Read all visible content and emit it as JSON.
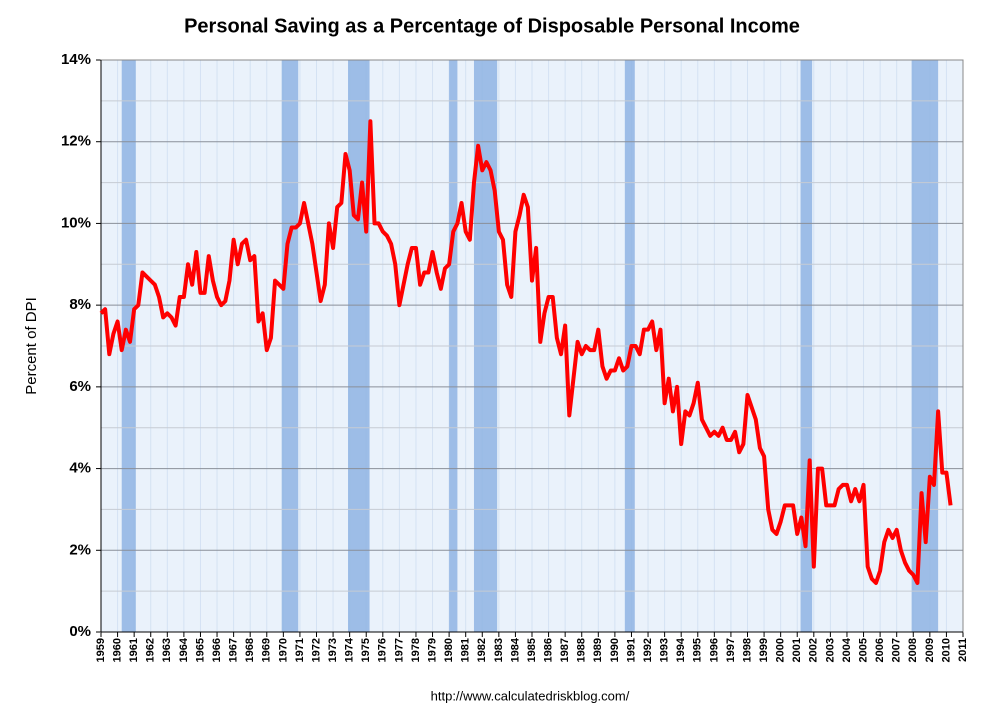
{
  "chart_data": {
    "type": "line",
    "title": "Personal Saving as a Percentage of Disposable Personal Income",
    "y_label": "Percent of DPI",
    "source": "http://www.calculatedriskblog.com/",
    "x": [
      1959,
      1959.25,
      1959.5,
      1959.75,
      1960,
      1960.25,
      1960.5,
      1960.75,
      1961,
      1961.25,
      1961.5,
      1961.75,
      1962,
      1962.25,
      1962.5,
      1962.75,
      1963,
      1963.25,
      1963.5,
      1963.75,
      1964,
      1964.25,
      1964.5,
      1964.75,
      1965,
      1965.25,
      1965.5,
      1965.75,
      1966,
      1966.25,
      1966.5,
      1966.75,
      1967,
      1967.25,
      1967.5,
      1967.75,
      1968,
      1968.25,
      1968.5,
      1968.75,
      1969,
      1969.25,
      1969.5,
      1969.75,
      1970,
      1970.25,
      1970.5,
      1970.75,
      1971,
      1971.25,
      1971.5,
      1971.75,
      1972,
      1972.25,
      1972.5,
      1972.75,
      1973,
      1973.25,
      1973.5,
      1973.75,
      1974,
      1974.25,
      1974.5,
      1974.75,
      1975,
      1975.25,
      1975.5,
      1975.75,
      1976,
      1976.25,
      1976.5,
      1976.75,
      1977,
      1977.25,
      1977.5,
      1977.75,
      1978,
      1978.25,
      1978.5,
      1978.75,
      1979,
      1979.25,
      1979.5,
      1979.75,
      1980,
      1980.25,
      1980.5,
      1980.75,
      1981,
      1981.25,
      1981.5,
      1981.75,
      1982,
      1982.25,
      1982.5,
      1982.75,
      1983,
      1983.25,
      1983.5,
      1983.75,
      1984,
      1984.25,
      1984.5,
      1984.75,
      1985,
      1985.25,
      1985.5,
      1985.75,
      1986,
      1986.25,
      1986.5,
      1986.75,
      1987,
      1987.25,
      1987.5,
      1987.75,
      1988,
      1988.25,
      1988.5,
      1988.75,
      1989,
      1989.25,
      1989.5,
      1989.75,
      1990,
      1990.25,
      1990.5,
      1990.75,
      1991,
      1991.25,
      1991.5,
      1991.75,
      1992,
      1992.25,
      1992.5,
      1992.75,
      1993,
      1993.25,
      1993.5,
      1993.75,
      1994,
      1994.25,
      1994.5,
      1994.75,
      1995,
      1995.25,
      1995.5,
      1995.75,
      1996,
      1996.25,
      1996.5,
      1996.75,
      1997,
      1997.25,
      1997.5,
      1997.75,
      1998,
      1998.25,
      1998.5,
      1998.75,
      1999,
      1999.25,
      1999.5,
      1999.75,
      2000,
      2000.25,
      2000.5,
      2000.75,
      2001,
      2001.25,
      2001.5,
      2001.75,
      2002,
      2002.25,
      2002.5,
      2002.75,
      2003,
      2003.25,
      2003.5,
      2003.75,
      2004,
      2004.25,
      2004.5,
      2004.75,
      2005,
      2005.25,
      2005.5,
      2005.75,
      2006,
      2006.25,
      2006.5,
      2006.75,
      2007,
      2007.25,
      2007.5,
      2007.75,
      2008,
      2008.25,
      2008.5,
      2008.75,
      2009,
      2009.25,
      2009.5,
      2009.75,
      2010,
      2010.25
    ],
    "series": [
      {
        "color": "#ff0000",
        "values": [
          7.8,
          7.9,
          6.8,
          7.3,
          7.6,
          6.9,
          7.4,
          7.1,
          7.9,
          8.0,
          8.8,
          8.7,
          8.6,
          8.5,
          8.2,
          7.7,
          7.8,
          7.7,
          7.5,
          8.2,
          8.2,
          9.0,
          8.5,
          9.3,
          8.3,
          8.3,
          9.2,
          8.6,
          8.2,
          8.0,
          8.1,
          8.6,
          9.6,
          9.0,
          9.5,
          9.6,
          9.1,
          9.2,
          7.6,
          7.8,
          6.9,
          7.2,
          8.6,
          8.5,
          8.4,
          9.5,
          9.9,
          9.9,
          10.0,
          10.5,
          10.0,
          9.5,
          8.8,
          8.1,
          8.5,
          10.0,
          9.4,
          10.4,
          10.5,
          11.7,
          11.3,
          10.2,
          10.1,
          11.0,
          9.8,
          12.5,
          10.0,
          10.0,
          9.8,
          9.7,
          9.5,
          9.0,
          8.0,
          8.5,
          9.0,
          9.4,
          9.4,
          8.5,
          8.8,
          8.8,
          9.3,
          8.8,
          8.4,
          8.9,
          9.0,
          9.8,
          10.0,
          10.5,
          9.8,
          9.6,
          11.0,
          11.9,
          11.3,
          11.5,
          11.3,
          10.8,
          9.8,
          9.6,
          8.5,
          8.2,
          9.8,
          10.2,
          10.7,
          10.4,
          8.6,
          9.4,
          7.1,
          7.8,
          8.2,
          8.2,
          7.2,
          6.8,
          7.5,
          5.3,
          6.2,
          7.1,
          6.8,
          7.0,
          6.9,
          6.9,
          7.4,
          6.5,
          6.2,
          6.4,
          6.4,
          6.7,
          6.4,
          6.5,
          7.0,
          7.0,
          6.8,
          7.4,
          7.4,
          7.6,
          6.9,
          7.4,
          5.6,
          6.2,
          5.4,
          6.0,
          4.6,
          5.4,
          5.3,
          5.6,
          6.1,
          5.2,
          5.0,
          4.8,
          4.9,
          4.8,
          5.0,
          4.7,
          4.7,
          4.9,
          4.4,
          4.6,
          5.8,
          5.5,
          5.2,
          4.5,
          4.3,
          3.0,
          2.5,
          2.4,
          2.7,
          3.1,
          3.1,
          3.1,
          2.4,
          2.8,
          2.1,
          4.2,
          1.6,
          4.0,
          4.0,
          3.1,
          3.1,
          3.1,
          3.5,
          3.6,
          3.6,
          3.2,
          3.5,
          3.2,
          3.6,
          1.6,
          1.3,
          1.2,
          1.5,
          2.2,
          2.5,
          2.3,
          2.5,
          2.0,
          1.7,
          1.5,
          1.4,
          1.2,
          3.4,
          2.2,
          3.8,
          3.6,
          5.4,
          3.9,
          3.9,
          3.1
        ]
      }
    ],
    "recessions": [
      [
        1960.25,
        1961.1
      ],
      [
        1969.9,
        1970.9
      ],
      [
        1973.9,
        1975.2
      ],
      [
        1980.0,
        1980.5
      ],
      [
        1981.5,
        1982.9
      ],
      [
        1990.6,
        1991.2
      ],
      [
        2001.2,
        2001.9
      ],
      [
        2007.9,
        2009.5
      ]
    ],
    "recession_color": "#8fb4e3",
    "xlim": [
      1959,
      2011
    ],
    "xticks": [
      1959,
      1960,
      1961,
      1962,
      1963,
      1964,
      1965,
      1966,
      1967,
      1968,
      1969,
      1970,
      1971,
      1972,
      1973,
      1974,
      1975,
      1976,
      1977,
      1978,
      1979,
      1980,
      1981,
      1982,
      1983,
      1984,
      1985,
      1986,
      1987,
      1988,
      1989,
      1990,
      1991,
      1992,
      1993,
      1994,
      1995,
      1996,
      1997,
      1998,
      1999,
      2000,
      2001,
      2002,
      2003,
      2004,
      2005,
      2006,
      2007,
      2008,
      2009,
      2010,
      2011
    ],
    "ylim": [
      0,
      14
    ],
    "yticks": [
      {
        "value": 0,
        "label": "0%"
      },
      {
        "value": 2,
        "label": "2%"
      },
      {
        "value": 4,
        "label": "4%"
      },
      {
        "value": 6,
        "label": "6%"
      },
      {
        "value": 8,
        "label": "8%"
      },
      {
        "value": 10,
        "label": "10%"
      },
      {
        "value": 12,
        "label": "12%"
      },
      {
        "value": 14,
        "label": "14%"
      }
    ],
    "yminorticks": [
      1,
      3,
      5,
      7,
      9,
      11,
      13
    ],
    "grid": true
  }
}
